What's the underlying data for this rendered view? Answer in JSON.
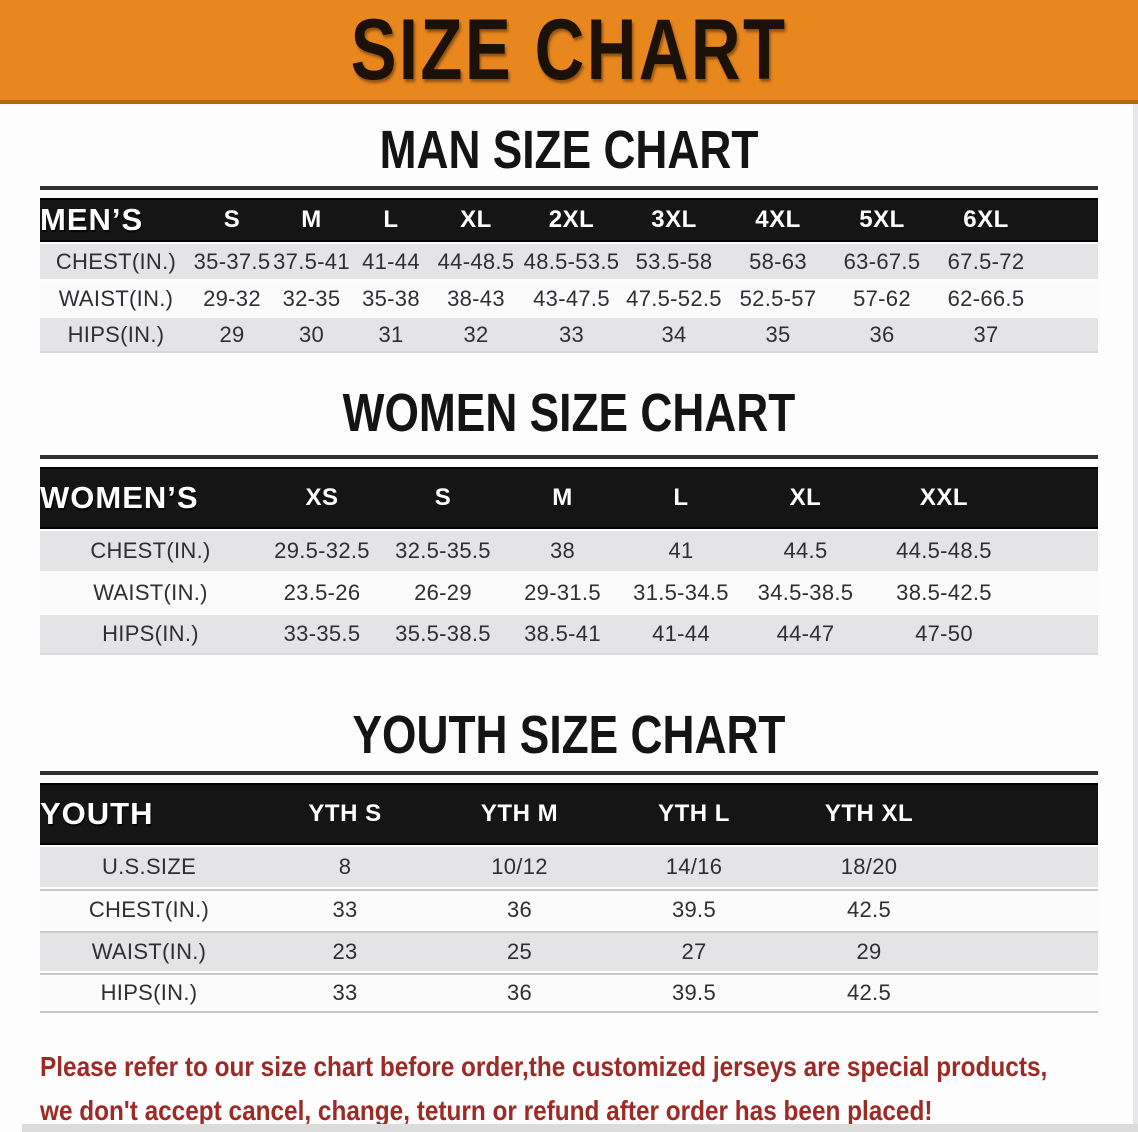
{
  "banner": {
    "title": "SIZE CHART",
    "bg_color": "#e8871e",
    "text_color": "#1b1107"
  },
  "sections": [
    {
      "heading": "MAN SIZE CHART",
      "table": {
        "header": [
          "MEN’S",
          "S",
          "M",
          "L",
          "XL",
          "2XL",
          "3XL",
          "4XL",
          "5XL",
          "6XL"
        ],
        "rows": [
          {
            "label": "CHEST(IN.)",
            "values": [
              "35-37.5",
              "37.5-41",
              "41-44",
              "44-48.5",
              "48.5-53.5",
              "53.5-58",
              "58-63",
              "63-67.5",
              "67.5-72"
            ]
          },
          {
            "label": "WAIST(IN.)",
            "values": [
              "29-32",
              "32-35",
              "35-38",
              "38-43",
              "43-47.5",
              "47.5-52.5",
              "52.5-57",
              "57-62",
              "62-66.5"
            ]
          },
          {
            "label": "HIPS(IN.)",
            "values": [
              "29",
              "30",
              "31",
              "32",
              "33",
              "34",
              "35",
              "36",
              "37"
            ]
          }
        ]
      }
    },
    {
      "heading": "WOMEN SIZE CHART",
      "table": {
        "header": [
          "WOMEN’S",
          "XS",
          "S",
          "M",
          "L",
          "XL",
          "XXL"
        ],
        "rows": [
          {
            "label": "CHEST(IN.)",
            "values": [
              "29.5-32.5",
              "32.5-35.5",
              "38",
              "41",
              "44.5",
              "44.5-48.5"
            ]
          },
          {
            "label": "WAIST(IN.)",
            "values": [
              "23.5-26",
              "26-29",
              "29-31.5",
              "31.5-34.5",
              "34.5-38.5",
              "38.5-42.5"
            ]
          },
          {
            "label": "HIPS(IN.)",
            "values": [
              "33-35.5",
              "35.5-38.5",
              "38.5-41",
              "41-44",
              "44-47",
              "47-50"
            ]
          }
        ]
      }
    },
    {
      "heading": "YOUTH SIZE CHART",
      "table": {
        "header": [
          "YOUTH",
          "YTH S",
          "YTH M",
          "YTH L",
          "YTH XL"
        ],
        "rows": [
          {
            "label": "U.S.SIZE",
            "values": [
              "8",
              "10/12",
              "14/16",
              "18/20"
            ]
          },
          {
            "label": "CHEST(IN.)",
            "values": [
              "33",
              "36",
              "39.5",
              "42.5"
            ]
          },
          {
            "label": "WAIST(IN.)",
            "values": [
              "23",
              "25",
              "27",
              "29"
            ]
          },
          {
            "label": "HIPS(IN.)",
            "values": [
              "33",
              "36",
              "39.5",
              "42.5"
            ]
          }
        ]
      }
    }
  ],
  "footer_note": {
    "line1": "Please refer to our size chart before order,the customized jerseys are special products,",
    "line2": "we don't accept cancel, change, teturn or refund after order has been placed!",
    "text_color": "#9e2a26"
  },
  "row_colors": {
    "gray": "#e4e4e6",
    "white": "#fbfbfb",
    "header_bar": "#151515"
  }
}
